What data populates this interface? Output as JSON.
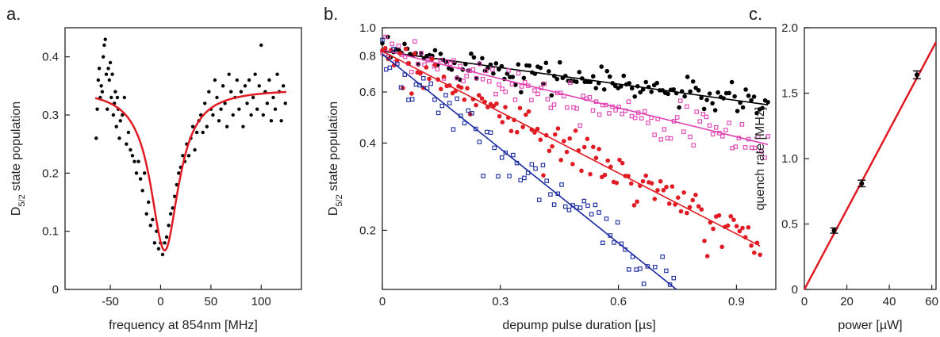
{
  "chart_data": [
    {
      "panel": "a.",
      "type": "scatter",
      "xlabel": "frequency at 854nm [MHz]",
      "ylabel_main": "D",
      "ylabel_sub": "5/2",
      "ylabel_rest": " state population",
      "xlim": [
        -95,
        140
      ],
      "ylim": [
        0,
        0.45
      ],
      "xticks": [
        -50,
        0,
        50,
        100
      ],
      "yticks": [
        0,
        0.1,
        0.2,
        0.3,
        0.4
      ],
      "xtick_labels": [
        "-50",
        "0",
        "50",
        "100"
      ],
      "ytick_labels": [
        "0",
        "0.1",
        "0.2",
        "0.3",
        "0.4"
      ],
      "series": [
        {
          "kind": "points",
          "color": "#000000",
          "x": [
            -64,
            -63,
            -62,
            -61,
            -60,
            -59,
            -58,
            -57,
            -56,
            -55,
            -54,
            -53,
            -52,
            -51,
            -50,
            -49,
            -48,
            -47,
            -46,
            -45,
            -44,
            -43,
            -42,
            -41,
            -40,
            -38,
            -36,
            -34,
            -32,
            -30,
            -28,
            -26,
            -24,
            -22,
            -20,
            -18,
            -16,
            -14,
            -12,
            -10,
            -8,
            -6,
            -4,
            -2,
            0,
            2,
            4,
            6,
            8,
            10,
            12,
            14,
            16,
            18,
            20,
            22,
            24,
            26,
            28,
            30,
            32,
            34,
            36,
            38,
            40,
            42,
            44,
            46,
            48,
            50,
            52,
            54,
            56,
            58,
            60,
            62,
            64,
            66,
            68,
            70,
            72,
            74,
            76,
            78,
            80,
            82,
            84,
            86,
            88,
            90,
            92,
            94,
            96,
            98,
            100,
            102,
            104,
            106,
            108,
            110,
            112,
            114,
            116,
            118,
            120,
            122,
            124
          ],
          "y": [
            0.26,
            0.31,
            0.36,
            0.38,
            0.33,
            0.35,
            0.34,
            0.4,
            0.42,
            0.43,
            0.37,
            0.31,
            0.38,
            0.36,
            0.39,
            0.33,
            0.37,
            0.3,
            0.32,
            0.34,
            0.28,
            0.33,
            0.31,
            0.26,
            0.29,
            0.3,
            0.33,
            0.25,
            0.27,
            0.24,
            0.23,
            0.22,
            0.2,
            0.22,
            0.19,
            0.17,
            0.2,
            0.13,
            0.15,
            0.11,
            0.12,
            0.08,
            0.1,
            0.07,
            0.08,
            0.06,
            0.08,
            0.09,
            0.11,
            0.13,
            0.14,
            0.16,
            0.18,
            0.2,
            0.21,
            0.23,
            0.22,
            0.25,
            0.23,
            0.26,
            0.28,
            0.24,
            0.27,
            0.29,
            0.3,
            0.27,
            0.32,
            0.28,
            0.34,
            0.31,
            0.3,
            0.36,
            0.33,
            0.29,
            0.31,
            0.35,
            0.32,
            0.28,
            0.37,
            0.34,
            0.3,
            0.33,
            0.36,
            0.31,
            0.34,
            0.28,
            0.35,
            0.32,
            0.36,
            0.3,
            0.33,
            0.37,
            0.31,
            0.35,
            0.42,
            0.3,
            0.34,
            0.32,
            0.36,
            0.29,
            0.33,
            0.31,
            0.37,
            0.34,
            0.29,
            0.35,
            0.32
          ]
        },
        {
          "kind": "line",
          "color": "#e01b24",
          "fit": "lorentzian",
          "center": 4,
          "width": 34,
          "baseline": 0.345,
          "depth": 0.278,
          "xrange": [
            -65,
            125
          ]
        }
      ]
    },
    {
      "panel": "b.",
      "type": "scatter",
      "scale_y": "log",
      "xlabel": "depump pulse duration [µs]",
      "ylabel_main": "D",
      "ylabel_sub": "5/2",
      "ylabel_rest": " state population",
      "xlim": [
        0,
        1.0
      ],
      "ylim": [
        0.125,
        1.0
      ],
      "xticks": [
        0,
        0.3,
        0.6,
        0.9
      ],
      "xtick_labels": [
        "0",
        "0.3",
        "0.6",
        "0.9"
      ],
      "yticks": [
        0.2,
        0.4,
        0.6,
        0.8,
        1.0
      ],
      "ytick_labels": [
        "0.2",
        "0.4",
        "0.6",
        "0.8",
        "1.0"
      ],
      "series": [
        {
          "color": "#000000",
          "marker": "filled",
          "A": 0.83,
          "tau": 2.3,
          "n": 140,
          "tmax": 0.98,
          "noise": 0.06
        },
        {
          "color": "#e040b0",
          "marker": "open",
          "A": 0.84,
          "tau": 1.3,
          "n": 120,
          "tmax": 0.98,
          "noise": 0.07
        },
        {
          "color": "#e01b24",
          "marker": "filled",
          "A": 0.83,
          "tau": 0.62,
          "n": 130,
          "tmax": 0.96,
          "noise": 0.09
        },
        {
          "color": "#1a2aa0",
          "marker": "open",
          "A": 0.81,
          "tau": 0.4,
          "n": 80,
          "tmax": 0.75,
          "noise": 0.09
        }
      ]
    },
    {
      "panel": "c.",
      "type": "scatter",
      "xlabel": "power [µW]",
      "ylabel": "quench rate [MHz]",
      "xlim": [
        0,
        62
      ],
      "ylim": [
        0,
        2.0
      ],
      "xticks": [
        0,
        20,
        40,
        60
      ],
      "xtick_labels": [
        "0",
        "20",
        "40",
        "60"
      ],
      "yticks": [
        0,
        0.5,
        1.0,
        1.5,
        2.0
      ],
      "ytick_labels": [
        "0",
        "0.5",
        "1.0",
        "1.5",
        "2.0"
      ],
      "points": [
        {
          "x": 14,
          "y": 0.45,
          "err": 0.02
        },
        {
          "x": 27,
          "y": 0.81,
          "err": 0.025
        },
        {
          "x": 53,
          "y": 1.64,
          "err": 0.03
        }
      ],
      "fit": {
        "color": "#e01b24",
        "slope": 0.0305,
        "intercept": 0
      }
    }
  ]
}
